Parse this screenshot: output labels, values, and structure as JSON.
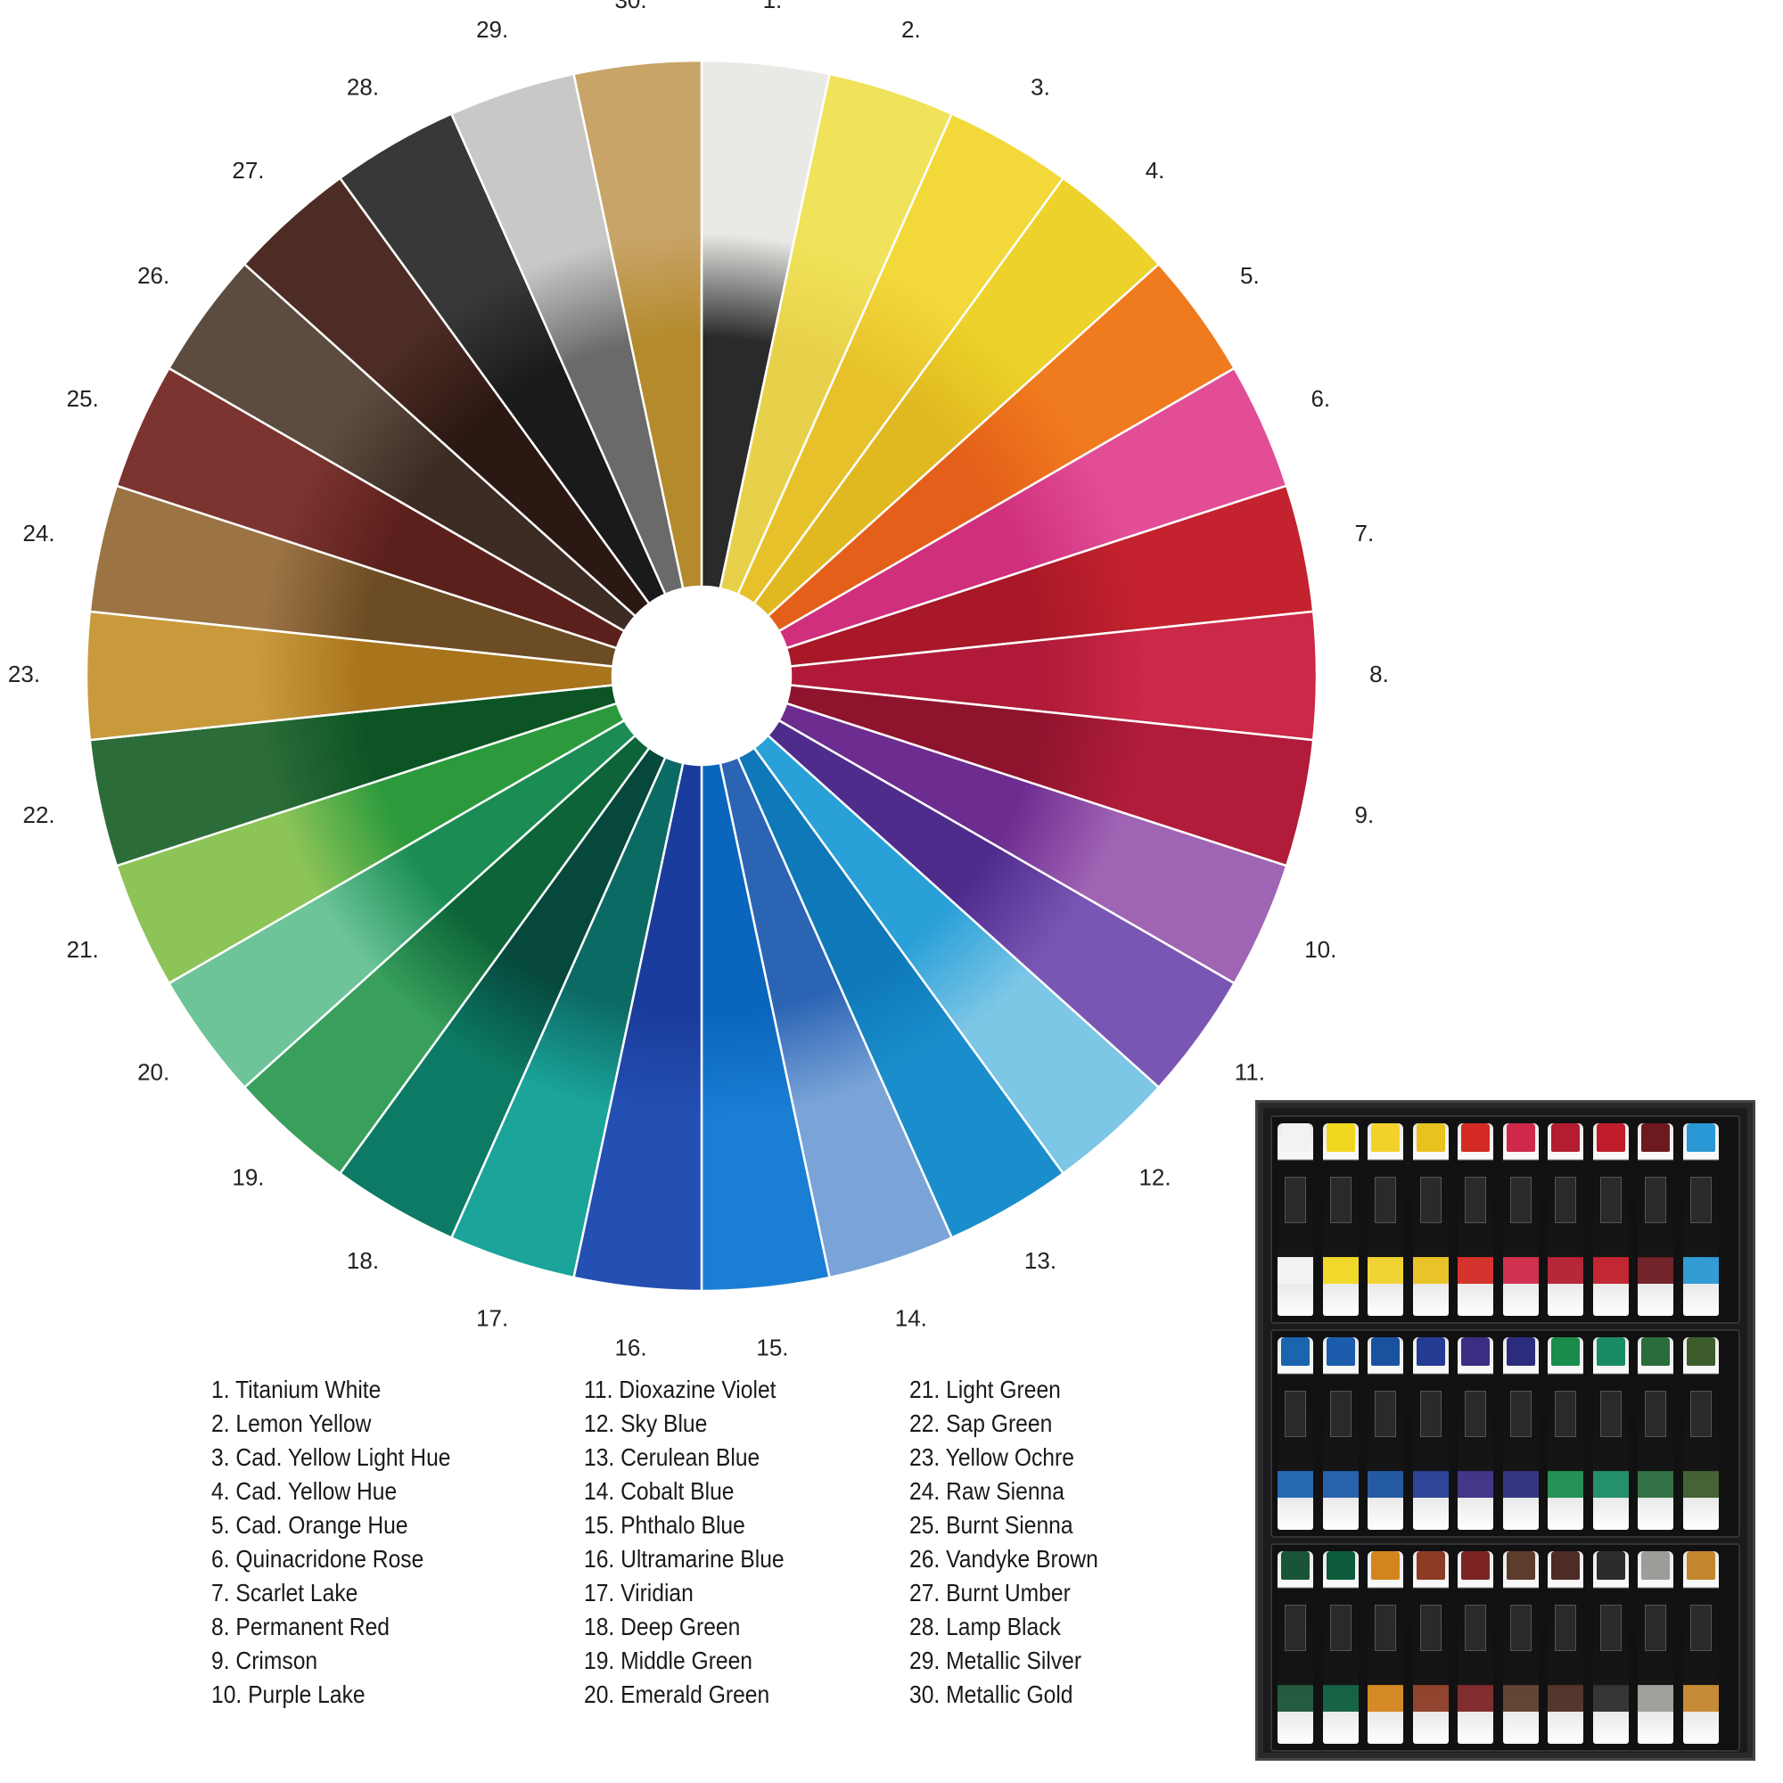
{
  "wheel": {
    "segments": [
      {
        "number": "1.",
        "color": "#e9e9e6",
        "dark": "#2a2a2a"
      },
      {
        "number": "2.",
        "color": "#f0e25a",
        "dark": "#e8d14a"
      },
      {
        "number": "3.",
        "color": "#f3d83a",
        "dark": "#e6c12a"
      },
      {
        "number": "4.",
        "color": "#ecd22a",
        "dark": "#e0b820"
      },
      {
        "number": "5.",
        "color": "#f07a1e",
        "dark": "#e4601a"
      },
      {
        "number": "6.",
        "color": "#e24d96",
        "dark": "#cf2f7c"
      },
      {
        "number": "7.",
        "color": "#c4222e",
        "dark": "#a81828"
      },
      {
        "number": "8.",
        "color": "#cc2848",
        "dark": "#b01a38"
      },
      {
        "number": "9.",
        "color": "#b01c3a",
        "dark": "#8e142e"
      },
      {
        "number": "10.",
        "color": "#a064b4",
        "dark": "#6c2c90"
      },
      {
        "number": "11.",
        "color": "#7a56b4",
        "dark": "#4e2c8c"
      },
      {
        "number": "12.",
        "color": "#7cc6e6",
        "dark": "#2aa0d8"
      },
      {
        "number": "13.",
        "color": "#1a8ecc",
        "dark": "#0e78b8"
      },
      {
        "number": "14.",
        "color": "#7aa4d8",
        "dark": "#2c64b4"
      },
      {
        "number": "15.",
        "color": "#1a7ed4",
        "dark": "#0a66bc"
      },
      {
        "number": "16.",
        "color": "#2450b4",
        "dark": "#1a3c9c"
      },
      {
        "number": "17.",
        "color": "#1aa49a",
        "dark": "#0c6a64"
      },
      {
        "number": "18.",
        "color": "#0c7a64",
        "dark": "#06483c"
      },
      {
        "number": "19.",
        "color": "#38a05c",
        "dark": "#0c6438"
      },
      {
        "number": "20.",
        "color": "#6cc498",
        "dark": "#1a8c54"
      },
      {
        "number": "21.",
        "color": "#8cc458",
        "dark": "#2c9a3c"
      },
      {
        "number": "22.",
        "color": "#2c6c38",
        "dark": "#0c5424"
      },
      {
        "number": "23.",
        "color": "#c89a3c",
        "dark": "#a8741c"
      },
      {
        "number": "24.",
        "color": "#9c7444",
        "dark": "#6c4c24"
      },
      {
        "number": "25.",
        "color": "#7c3430",
        "dark": "#5c201c"
      },
      {
        "number": "26.",
        "color": "#5c4c40",
        "dark": "#3c2c24"
      },
      {
        "number": "27.",
        "color": "#4c2c24",
        "dark": "#2c1812"
      },
      {
        "number": "28.",
        "color": "#383838",
        "dark": "#1a1a1a"
      },
      {
        "number": "29.",
        "color": "#c8c8c6",
        "dark": "#6a6a68"
      },
      {
        "number": "30.",
        "color": "#c8a468",
        "dark": "#b48a2c"
      }
    ]
  },
  "legend": {
    "col1": [
      "1. Titanium White",
      "2. Lemon Yellow",
      "3. Cad. Yellow Light Hue",
      "4. Cad. Yellow  Hue",
      "5. Cad. Orange Hue",
      "6. Quinacridone Rose",
      "7. Scarlet Lake",
      "8. Permanent Red",
      "9. Crimson",
      "10. Purple Lake"
    ],
    "col2": [
      "11. Dioxazine Violet",
      "12. Sky Blue",
      "13. Cerulean Blue",
      "14. Cobalt Blue",
      "15. Phthalo Blue",
      "16. Ultramarine Blue",
      "17. Viridian",
      "18. Deep Green",
      "19. Middle Green",
      "20. Emerald Green"
    ],
    "col3": [
      "21. Light Green",
      "22. Sap Green",
      "23. Yellow Ochre",
      "24. Raw Sienna",
      "25. Burnt Sienna",
      "26. Vandyke Brown",
      "27. Burnt Umber",
      "28. Lamp Black",
      "29. Metallic Silver",
      "30. Metallic Gold"
    ]
  },
  "paint_set": {
    "rows": [
      [
        "#f2f2f2",
        "#f0d820",
        "#f2d22a",
        "#e8c21e",
        "#d42a24",
        "#d02848",
        "#b41c30",
        "#c01c2a",
        "#6c1a20",
        "#2a98d4"
      ],
      [
        "#1a64b0",
        "#1c5cac",
        "#1a52a0",
        "#243c94",
        "#3c2c84",
        "#2c2c7c",
        "#1a8c4c",
        "#1a8c64",
        "#2a6c3c",
        "#3c5c2c"
      ],
      [
        "#1a5438",
        "#0c5c3c",
        "#d4841c",
        "#8c3c24",
        "#7c2424",
        "#5c3c2c",
        "#4c2c24",
        "#2c2c2c",
        "#9c9c98",
        "#c4862c"
      ]
    ]
  }
}
